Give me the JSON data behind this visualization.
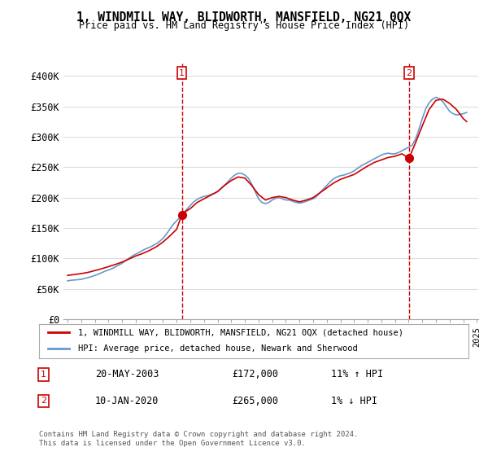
{
  "title": "1, WINDMILL WAY, BLIDWORTH, MANSFIELD, NG21 0QX",
  "subtitle": "Price paid vs. HM Land Registry's House Price Index (HPI)",
  "ylabel_prefix": "£",
  "yticks": [
    0,
    50000,
    100000,
    150000,
    200000,
    250000,
    300000,
    350000,
    400000
  ],
  "ytick_labels": [
    "£0",
    "£50K",
    "£100K",
    "£150K",
    "£200K",
    "£250K",
    "£300K",
    "£350K",
    "£400K"
  ],
  "ylim": [
    0,
    420000
  ],
  "red_color": "#cc0000",
  "blue_color": "#6699cc",
  "legend_red": "1, WINDMILL WAY, BLIDWORTH, MANSFIELD, NG21 0QX (detached house)",
  "legend_blue": "HPI: Average price, detached house, Newark and Sherwood",
  "marker1_label": "1",
  "marker1_date": "20-MAY-2003",
  "marker1_price": "£172,000",
  "marker1_hpi": "11% ↑ HPI",
  "marker1_x": 2003.38,
  "marker1_y": 172000,
  "marker2_label": "2",
  "marker2_date": "10-JAN-2020",
  "marker2_price": "£265,000",
  "marker2_hpi": "1% ↓ HPI",
  "marker2_x": 2020.03,
  "marker2_y": 265000,
  "footnote": "Contains HM Land Registry data © Crown copyright and database right 2024.\nThis data is licensed under the Open Government Licence v3.0.",
  "hpi_x": [
    1995.0,
    1995.25,
    1995.5,
    1995.75,
    1996.0,
    1996.25,
    1996.5,
    1996.75,
    1997.0,
    1997.25,
    1997.5,
    1997.75,
    1998.0,
    1998.25,
    1998.5,
    1998.75,
    1999.0,
    1999.25,
    1999.5,
    1999.75,
    2000.0,
    2000.25,
    2000.5,
    2000.75,
    2001.0,
    2001.25,
    2001.5,
    2001.75,
    2002.0,
    2002.25,
    2002.5,
    2002.75,
    2003.0,
    2003.25,
    2003.5,
    2003.75,
    2004.0,
    2004.25,
    2004.5,
    2004.75,
    2005.0,
    2005.25,
    2005.5,
    2005.75,
    2006.0,
    2006.25,
    2006.5,
    2006.75,
    2007.0,
    2007.25,
    2007.5,
    2007.75,
    2008.0,
    2008.25,
    2008.5,
    2008.75,
    2009.0,
    2009.25,
    2009.5,
    2009.75,
    2010.0,
    2010.25,
    2010.5,
    2010.75,
    2011.0,
    2011.25,
    2011.5,
    2011.75,
    2012.0,
    2012.25,
    2012.5,
    2012.75,
    2013.0,
    2013.25,
    2013.5,
    2013.75,
    2014.0,
    2014.25,
    2014.5,
    2014.75,
    2015.0,
    2015.25,
    2015.5,
    2015.75,
    2016.0,
    2016.25,
    2016.5,
    2016.75,
    2017.0,
    2017.25,
    2017.5,
    2017.75,
    2018.0,
    2018.25,
    2018.5,
    2018.75,
    2019.0,
    2019.25,
    2019.5,
    2019.75,
    2020.0,
    2020.25,
    2020.5,
    2020.75,
    2021.0,
    2021.25,
    2021.5,
    2021.75,
    2022.0,
    2022.25,
    2022.5,
    2022.75,
    2023.0,
    2023.25,
    2023.5,
    2023.75,
    2024.0,
    2024.25
  ],
  "hpi_y": [
    63000,
    64000,
    64500,
    65000,
    65500,
    67000,
    68500,
    70000,
    72000,
    74000,
    76500,
    79000,
    81000,
    83000,
    86000,
    89000,
    92000,
    96000,
    100000,
    104000,
    107000,
    110000,
    113000,
    116000,
    118000,
    121000,
    124000,
    128000,
    133000,
    140000,
    148000,
    156000,
    162000,
    168000,
    175000,
    181000,
    187000,
    193000,
    197000,
    200000,
    202000,
    203000,
    205000,
    207000,
    210000,
    215000,
    220000,
    226000,
    232000,
    237000,
    240000,
    240000,
    237000,
    232000,
    222000,
    210000,
    198000,
    192000,
    190000,
    192000,
    196000,
    199000,
    200000,
    198000,
    196000,
    196000,
    194000,
    192000,
    191000,
    192000,
    194000,
    196000,
    198000,
    202000,
    208000,
    214000,
    220000,
    226000,
    231000,
    234000,
    236000,
    237000,
    239000,
    241000,
    244000,
    248000,
    252000,
    255000,
    258000,
    261000,
    264000,
    267000,
    270000,
    272000,
    273000,
    272000,
    272000,
    274000,
    277000,
    280000,
    283000,
    286000,
    296000,
    312000,
    330000,
    346000,
    356000,
    362000,
    365000,
    363000,
    358000,
    350000,
    342000,
    338000,
    336000,
    337000,
    338000,
    340000
  ],
  "red_x": [
    1995.0,
    1995.5,
    1996.0,
    1996.5,
    1997.0,
    1997.5,
    1998.0,
    1998.5,
    1999.0,
    1999.5,
    2000.0,
    2000.5,
    2001.0,
    2001.5,
    2002.0,
    2002.5,
    2003.0,
    2003.38,
    2003.5,
    2004.0,
    2004.5,
    2005.0,
    2005.5,
    2006.0,
    2006.5,
    2007.0,
    2007.5,
    2008.0,
    2008.5,
    2009.0,
    2009.5,
    2010.0,
    2010.5,
    2011.0,
    2011.5,
    2012.0,
    2012.5,
    2013.0,
    2013.5,
    2014.0,
    2014.5,
    2015.0,
    2015.5,
    2016.0,
    2016.5,
    2017.0,
    2017.5,
    2018.0,
    2018.5,
    2019.0,
    2019.5,
    2020.03,
    2020.5,
    2021.0,
    2021.5,
    2022.0,
    2022.5,
    2023.0,
    2023.5,
    2024.0,
    2024.25
  ],
  "red_y": [
    72000,
    73500,
    75000,
    77000,
    80000,
    83000,
    86500,
    90000,
    94000,
    99000,
    104000,
    108000,
    113000,
    119000,
    127000,
    137000,
    148000,
    172000,
    175000,
    182000,
    192000,
    198000,
    204000,
    210000,
    220000,
    228000,
    234000,
    232000,
    220000,
    205000,
    196000,
    200000,
    202000,
    200000,
    196000,
    193000,
    196000,
    200000,
    208000,
    216000,
    224000,
    230000,
    234000,
    238000,
    245000,
    252000,
    258000,
    262000,
    266000,
    268000,
    272000,
    265000,
    290000,
    318000,
    345000,
    360000,
    362000,
    355000,
    345000,
    330000,
    325000
  ],
  "xtick_years": [
    1995,
    1996,
    1997,
    1998,
    1999,
    2000,
    2001,
    2002,
    2003,
    2004,
    2005,
    2006,
    2007,
    2008,
    2009,
    2010,
    2011,
    2012,
    2013,
    2014,
    2015,
    2016,
    2017,
    2018,
    2019,
    2020,
    2021,
    2022,
    2023,
    2024,
    2025
  ],
  "bg_color": "#ffffff",
  "grid_color": "#dddddd"
}
